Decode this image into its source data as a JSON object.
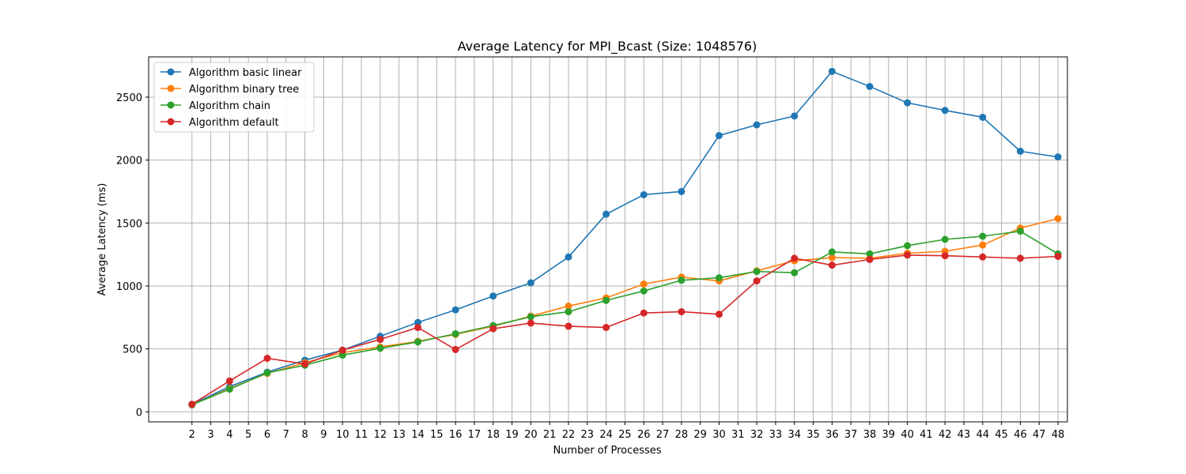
{
  "chart_data": {
    "type": "line",
    "title": "Average Latency for MPI_Bcast (Size: 1048576)",
    "xlabel": "Number of Processes",
    "ylabel": "Average Latency (ms)",
    "x_ticks": [
      "2",
      "3",
      "4",
      "5",
      "6",
      "7",
      "8",
      "9",
      "10",
      "11",
      "12",
      "13",
      "14",
      "15",
      "16",
      "17",
      "18",
      "19",
      "20",
      "21",
      "22",
      "23",
      "24",
      "25",
      "26",
      "27",
      "28",
      "29",
      "30",
      "31",
      "32",
      "33",
      "34",
      "35",
      "36",
      "37",
      "38",
      "39",
      "40",
      "41",
      "42",
      "43",
      "44",
      "45",
      "46",
      "47",
      "48"
    ],
    "y_ticks": [
      "0",
      "500",
      "1000",
      "1500",
      "2000",
      "2500"
    ],
    "xlim": [
      -0.3,
      48.5
    ],
    "ylim": [
      -80,
      2820
    ],
    "grid": true,
    "legend_position": "upper-left",
    "x": [
      2,
      4,
      6,
      8,
      10,
      12,
      14,
      16,
      18,
      20,
      22,
      24,
      26,
      28,
      30,
      32,
      34,
      36,
      38,
      40,
      42,
      44,
      46,
      48
    ],
    "series": [
      {
        "name": "Algorithm basic linear",
        "color": "#1f77b4",
        "values": [
          60,
          200,
          315,
          410,
          490,
          600,
          710,
          810,
          920,
          1025,
          1230,
          1570,
          1725,
          1750,
          2195,
          2280,
          2350,
          2705,
          2585,
          2455,
          2395,
          2340,
          2070,
          2025
        ]
      },
      {
        "name": "Algorithm binary tree",
        "color": "#ff7f0e",
        "values": [
          55,
          185,
          305,
          390,
          470,
          515,
          560,
          615,
          680,
          760,
          840,
          905,
          1015,
          1070,
          1040,
          1120,
          1200,
          1225,
          1220,
          1260,
          1275,
          1325,
          1460,
          1535
        ]
      },
      {
        "name": "Algorithm chain",
        "color": "#2ca02c",
        "values": [
          55,
          180,
          310,
          370,
          450,
          505,
          555,
          620,
          685,
          755,
          795,
          885,
          960,
          1045,
          1065,
          1115,
          1105,
          1270,
          1255,
          1320,
          1370,
          1395,
          1435,
          1255
        ]
      },
      {
        "name": "Algorithm default",
        "color": "#d62728",
        "values": [
          60,
          245,
          425,
          380,
          490,
          575,
          670,
          495,
          660,
          705,
          680,
          670,
          785,
          795,
          775,
          1040,
          1220,
          1165,
          1210,
          1245,
          1240,
          1230,
          1220,
          1235
        ]
      }
    ]
  }
}
